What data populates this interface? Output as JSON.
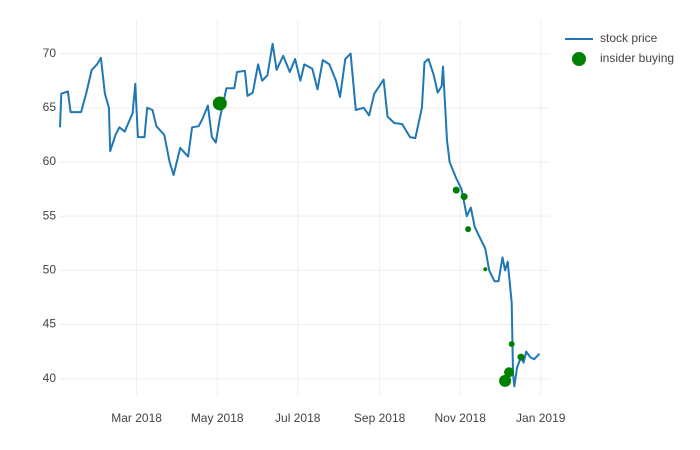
{
  "chart_data": {
    "type": "line",
    "xlim": [
      "2018-01-02",
      "2019-01-08"
    ],
    "ylim": [
      38.5,
      73.1
    ],
    "xticks": [
      {
        "value": "2018-03-01",
        "label": "Mar 2018"
      },
      {
        "value": "2018-05-01",
        "label": "May 2018"
      },
      {
        "value": "2018-07-01",
        "label": "Jul 2018"
      },
      {
        "value": "2018-09-01",
        "label": "Sep 2018"
      },
      {
        "value": "2018-11-01",
        "label": "Nov 2018"
      },
      {
        "value": "2019-01-01",
        "label": "Jan 2019"
      }
    ],
    "yticks": [
      40,
      45,
      50,
      55,
      60,
      65,
      70
    ],
    "grid": true,
    "legend": "top-right",
    "series": [
      {
        "name": "stock price",
        "type": "line",
        "color": "#1f77b4",
        "x": [
          "2018-01-02",
          "2018-01-03",
          "2018-01-08",
          "2018-01-10",
          "2018-01-18",
          "2018-01-22",
          "2018-01-26",
          "2018-01-30",
          "2018-02-02",
          "2018-02-05",
          "2018-02-08",
          "2018-02-09",
          "2018-02-13",
          "2018-02-16",
          "2018-02-20",
          "2018-02-26",
          "2018-02-28",
          "2018-03-02",
          "2018-03-07",
          "2018-03-09",
          "2018-03-13",
          "2018-03-16",
          "2018-03-22",
          "2018-03-26",
          "2018-03-29",
          "2018-04-03",
          "2018-04-09",
          "2018-04-12",
          "2018-04-17",
          "2018-04-20",
          "2018-04-24",
          "2018-04-27",
          "2018-04-30",
          "2018-05-03",
          "2018-05-08",
          "2018-05-14",
          "2018-05-16",
          "2018-05-22",
          "2018-05-24",
          "2018-05-28",
          "2018-06-01",
          "2018-06-04",
          "2018-06-08",
          "2018-06-12",
          "2018-06-15",
          "2018-06-20",
          "2018-06-25",
          "2018-06-29",
          "2018-07-03",
          "2018-07-06",
          "2018-07-12",
          "2018-07-16",
          "2018-07-20",
          "2018-07-25",
          "2018-07-30",
          "2018-08-02",
          "2018-08-06",
          "2018-08-10",
          "2018-08-14",
          "2018-08-20",
          "2018-08-24",
          "2018-08-28",
          "2018-09-04",
          "2018-09-07",
          "2018-09-12",
          "2018-09-18",
          "2018-09-24",
          "2018-09-28",
          "2018-10-03",
          "2018-10-05",
          "2018-10-08",
          "2018-10-12",
          "2018-10-15",
          "2018-10-18",
          "2018-10-19",
          "2018-10-22",
          "2018-10-24",
          "2018-10-29",
          "2018-11-02",
          "2018-11-06",
          "2018-11-09",
          "2018-11-12",
          "2018-11-16",
          "2018-11-20",
          "2018-11-23",
          "2018-11-27",
          "2018-11-30",
          "2018-12-03",
          "2018-12-05",
          "2018-12-07",
          "2018-12-10",
          "2018-12-11",
          "2018-12-12",
          "2018-12-14",
          "2018-12-17",
          "2018-12-19",
          "2018-12-21",
          "2018-12-24",
          "2018-12-27",
          "2018-12-31"
        ],
        "values": [
          63.2,
          66.3,
          66.5,
          64.6,
          64.6,
          66.4,
          68.5,
          69.0,
          69.6,
          66.3,
          65.0,
          61.0,
          62.5,
          63.2,
          62.8,
          64.5,
          67.2,
          62.3,
          62.3,
          65.0,
          64.8,
          63.3,
          62.5,
          60.0,
          58.8,
          61.3,
          60.5,
          63.2,
          63.3,
          64.0,
          65.2,
          62.3,
          61.8,
          64.0,
          66.8,
          66.8,
          68.3,
          68.4,
          66.1,
          66.4,
          69.0,
          67.5,
          68.0,
          70.9,
          68.5,
          69.8,
          68.3,
          69.5,
          67.5,
          69.0,
          68.6,
          66.7,
          69.4,
          69.0,
          67.5,
          66.0,
          69.5,
          70.0,
          64.8,
          65.0,
          64.3,
          66.3,
          67.6,
          64.2,
          63.6,
          63.5,
          62.3,
          62.2,
          65.0,
          69.2,
          69.5,
          68.0,
          66.4,
          67.0,
          68.8,
          62.0,
          60.0,
          58.5,
          57.5,
          55.0,
          55.8,
          54.0,
          53.0,
          52.0,
          50.0,
          49.0,
          49.0,
          51.2,
          50.0,
          50.8,
          47.0,
          40.5,
          39.3,
          41.0,
          42.0,
          41.5,
          42.5,
          42.0,
          41.8,
          42.3
        ]
      },
      {
        "name": "insider buying",
        "type": "scatter",
        "color": "#008000",
        "x": [
          "2018-05-03",
          "2018-10-29",
          "2018-11-04",
          "2018-11-07",
          "2018-11-20",
          "2018-12-05",
          "2018-12-08",
          "2018-12-10",
          "2018-12-17"
        ],
        "values": [
          65.4,
          57.4,
          56.8,
          53.8,
          50.1,
          39.8,
          40.6,
          43.2,
          42.0
        ],
        "sizes": [
          14,
          7,
          7,
          6,
          4,
          12,
          10,
          6,
          7
        ]
      }
    ]
  }
}
